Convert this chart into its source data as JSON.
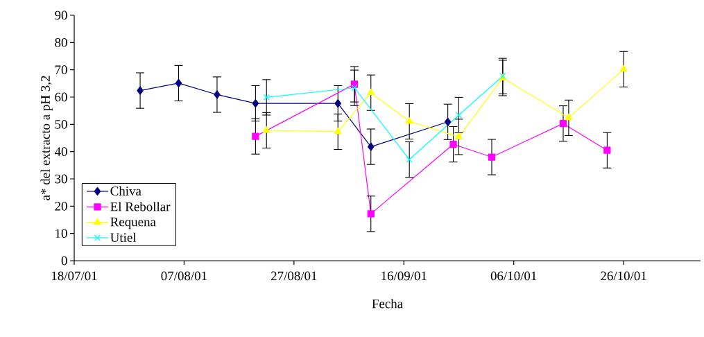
{
  "chart_data": {
    "type": "line",
    "xlabel": "Fecha",
    "ylabel": "a* del extracto a pH 3,2",
    "xlim": [
      "2001-07-18",
      "2001-11-09"
    ],
    "ylim": [
      0,
      90
    ],
    "yticks": [
      0,
      10,
      20,
      30,
      40,
      50,
      60,
      70,
      80,
      90
    ],
    "xticks": [
      {
        "value": "2001-07-18",
        "label": "18/07/01"
      },
      {
        "value": "2001-08-07",
        "label": "07/08/01"
      },
      {
        "value": "2001-08-27",
        "label": "27/08/01"
      },
      {
        "value": "2001-09-16",
        "label": "16/09/01"
      },
      {
        "value": "2001-10-06",
        "label": "06/10/01"
      },
      {
        "value": "2001-10-26",
        "label": "26/10/01"
      }
    ],
    "grid": false,
    "legend": "bottom left",
    "line_style": "solid",
    "series": [
      {
        "name": "Chiva",
        "color": "#000080",
        "marker": "diamond",
        "x": [
          "2001-07-30",
          "2001-08-06",
          "2001-08-13",
          "2001-08-20",
          "2001-09-04",
          "2001-09-10",
          "2001-09-24"
        ],
        "values": [
          62.4,
          65.1,
          60.9,
          57.7,
          57.7,
          41.8,
          50.9
        ],
        "errors": [
          6.5,
          6.5,
          6.5,
          6.5,
          6.5,
          6.5,
          6.5
        ]
      },
      {
        "name": "El Rebollar",
        "color": "#ff00ff",
        "marker": "square",
        "x": [
          "2001-08-20",
          "2001-09-07",
          "2001-09-10",
          "2001-09-25",
          "2001-10-02",
          "2001-10-15",
          "2001-10-23"
        ],
        "values": [
          45.6,
          64.7,
          17.2,
          42.7,
          38.0,
          50.3,
          40.5
        ],
        "errors": [
          6.5,
          6.5,
          6.5,
          6.5,
          6.5,
          6.5,
          6.5
        ]
      },
      {
        "name": "Requena",
        "color": "#ffff00",
        "marker": "triangle",
        "x": [
          "2001-08-22",
          "2001-09-04",
          "2001-09-10",
          "2001-09-17",
          "2001-09-26",
          "2001-10-04",
          "2001-10-16",
          "2001-10-26"
        ],
        "values": [
          47.8,
          47.3,
          61.6,
          51.1,
          45.4,
          67.0,
          52.4,
          70.2
        ],
        "errors": [
          6.5,
          6.5,
          6.5,
          6.5,
          6.5,
          6.5,
          6.5,
          6.5
        ]
      },
      {
        "name": "Utiel",
        "color": "#00ffff",
        "marker": "cross",
        "x": [
          "2001-08-22",
          "2001-09-07",
          "2001-09-17",
          "2001-09-26",
          "2001-10-04"
        ],
        "values": [
          59.9,
          63.4,
          37.1,
          53.4,
          67.7
        ],
        "errors": [
          6.5,
          6.5,
          6.5,
          6.5,
          6.5
        ]
      }
    ]
  }
}
